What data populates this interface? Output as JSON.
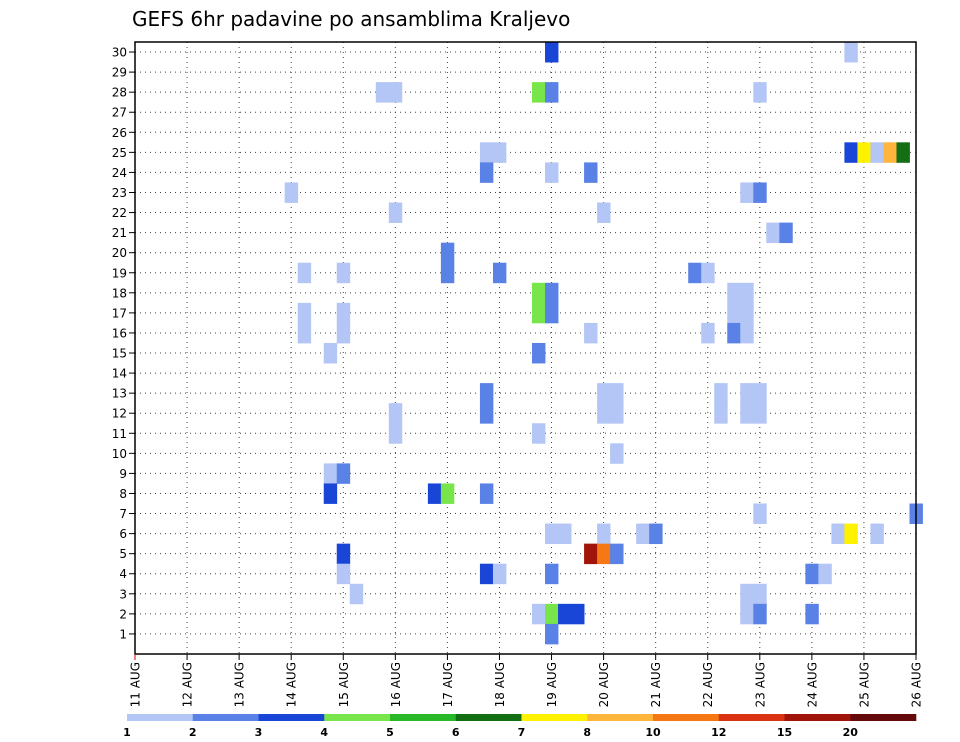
{
  "chart_data": {
    "type": "heatmap",
    "title": "GEFS 6hr padavine po ansamblima Kraljevo",
    "y_categories": [
      "1",
      "2",
      "3",
      "4",
      "5",
      "6",
      "7",
      "8",
      "9",
      "10",
      "11",
      "12",
      "13",
      "14",
      "15",
      "16",
      "17",
      "18",
      "19",
      "20",
      "21",
      "22",
      "23",
      "24",
      "25",
      "26",
      "27",
      "28",
      "29",
      "30"
    ],
    "x_tick_labels": [
      "11 AUG",
      "12 AUG",
      "13 AUG",
      "14 AUG",
      "15 AUG",
      "16 AUG",
      "17 AUG",
      "18 AUG",
      "19 AUG",
      "20 AUG",
      "21 AUG",
      "22 AUG",
      "23 AUG",
      "24 AUG",
      "25 AUG",
      "26 AUG"
    ],
    "x_range_days": [
      11,
      26
    ],
    "y_range": [
      0,
      30.5
    ],
    "grid": true,
    "legend": {
      "placement": "bottom",
      "labels": [
        "1",
        "2",
        "3",
        "4",
        "5",
        "6",
        "7",
        "8",
        "10",
        "12",
        "15",
        "20"
      ],
      "colors": [
        "#b3c6f5",
        "#5a82e6",
        "#1a46d8",
        "#78e64a",
        "#28b828",
        "#146e14",
        "#fff200",
        "#ffb43c",
        "#f57814",
        "#dc3214",
        "#a0140a",
        "#640a0a"
      ]
    },
    "cells": [
      {
        "m": 30,
        "t": 19.0,
        "v": 3
      },
      {
        "m": 30,
        "t": 24.75,
        "v": 1
      },
      {
        "m": 28,
        "t": 15.75,
        "v": 1
      },
      {
        "m": 28,
        "t": 16.0,
        "v": 1
      },
      {
        "m": 28,
        "t": 18.75,
        "v": 4
      },
      {
        "m": 28,
        "t": 19.0,
        "v": 2
      },
      {
        "m": 28,
        "t": 23.0,
        "v": 1
      },
      {
        "m": 25,
        "t": 17.75,
        "v": 1
      },
      {
        "m": 25,
        "t": 18.0,
        "v": 1
      },
      {
        "m": 25,
        "t": 24.75,
        "v": 3
      },
      {
        "m": 25,
        "t": 25.0,
        "v": 7
      },
      {
        "m": 25,
        "t": 25.25,
        "v": 1
      },
      {
        "m": 25,
        "t": 25.5,
        "v": 8
      },
      {
        "m": 25,
        "t": 25.75,
        "v": 6
      },
      {
        "m": 24,
        "t": 17.75,
        "v": 2
      },
      {
        "m": 24,
        "t": 19.0,
        "v": 1
      },
      {
        "m": 24,
        "t": 19.75,
        "v": 2
      },
      {
        "m": 23,
        "t": 14.0,
        "v": 1
      },
      {
        "m": 23,
        "t": 22.75,
        "v": 1
      },
      {
        "m": 23,
        "t": 23.0,
        "v": 2
      },
      {
        "m": 22,
        "t": 16.0,
        "v": 1
      },
      {
        "m": 22,
        "t": 20.0,
        "v": 1
      },
      {
        "m": 21,
        "t": 23.25,
        "v": 1
      },
      {
        "m": 21,
        "t": 23.5,
        "v": 2
      },
      {
        "m": 20,
        "t": 17.0,
        "v": 2
      },
      {
        "m": 19,
        "t": 14.25,
        "v": 1
      },
      {
        "m": 19,
        "t": 15.0,
        "v": 1
      },
      {
        "m": 19,
        "t": 17.0,
        "v": 2
      },
      {
        "m": 19,
        "t": 18.0,
        "v": 2
      },
      {
        "m": 19,
        "t": 21.75,
        "v": 2
      },
      {
        "m": 19,
        "t": 22.0,
        "v": 1
      },
      {
        "m": 18,
        "t": 18.75,
        "v": 4
      },
      {
        "m": 18,
        "t": 19.0,
        "v": 2
      },
      {
        "m": 18,
        "t": 22.5,
        "v": 1
      },
      {
        "m": 18,
        "t": 22.75,
        "v": 1
      },
      {
        "m": 17,
        "t": 14.25,
        "v": 1
      },
      {
        "m": 17,
        "t": 15.0,
        "v": 1
      },
      {
        "m": 17,
        "t": 18.75,
        "v": 4
      },
      {
        "m": 17,
        "t": 19.0,
        "v": 2
      },
      {
        "m": 17,
        "t": 22.5,
        "v": 1
      },
      {
        "m": 17,
        "t": 22.75,
        "v": 1
      },
      {
        "m": 16,
        "t": 14.25,
        "v": 1
      },
      {
        "m": 16,
        "t": 15.0,
        "v": 1
      },
      {
        "m": 16,
        "t": 19.75,
        "v": 1
      },
      {
        "m": 16,
        "t": 22.0,
        "v": 1
      },
      {
        "m": 16,
        "t": 22.5,
        "v": 2
      },
      {
        "m": 16,
        "t": 22.75,
        "v": 1
      },
      {
        "m": 15,
        "t": 14.75,
        "v": 1
      },
      {
        "m": 15,
        "t": 18.75,
        "v": 2
      },
      {
        "m": 13,
        "t": 17.75,
        "v": 2
      },
      {
        "m": 13,
        "t": 20.0,
        "v": 1
      },
      {
        "m": 13,
        "t": 20.25,
        "v": 1
      },
      {
        "m": 13,
        "t": 22.25,
        "v": 1
      },
      {
        "m": 13,
        "t": 22.75,
        "v": 1
      },
      {
        "m": 13,
        "t": 23.0,
        "v": 1
      },
      {
        "m": 12,
        "t": 16.0,
        "v": 1
      },
      {
        "m": 12,
        "t": 17.75,
        "v": 2
      },
      {
        "m": 12,
        "t": 20.0,
        "v": 1
      },
      {
        "m": 12,
        "t": 20.25,
        "v": 1
      },
      {
        "m": 12,
        "t": 22.25,
        "v": 1
      },
      {
        "m": 12,
        "t": 22.75,
        "v": 1
      },
      {
        "m": 12,
        "t": 23.0,
        "v": 1
      },
      {
        "m": 11,
        "t": 16.0,
        "v": 1
      },
      {
        "m": 11,
        "t": 18.75,
        "v": 1
      },
      {
        "m": 10,
        "t": 20.25,
        "v": 1
      },
      {
        "m": 9,
        "t": 14.75,
        "v": 1
      },
      {
        "m": 9,
        "t": 15.0,
        "v": 2
      },
      {
        "m": 8,
        "t": 14.75,
        "v": 3
      },
      {
        "m": 8,
        "t": 16.75,
        "v": 3
      },
      {
        "m": 8,
        "t": 17.0,
        "v": 4
      },
      {
        "m": 8,
        "t": 17.75,
        "v": 2
      },
      {
        "m": 7,
        "t": 23.0,
        "v": 1
      },
      {
        "m": 7,
        "t": 26.0,
        "v": 2
      },
      {
        "m": 6,
        "t": 19.0,
        "v": 1
      },
      {
        "m": 6,
        "t": 19.25,
        "v": 1
      },
      {
        "m": 6,
        "t": 20.0,
        "v": 1
      },
      {
        "m": 6,
        "t": 20.75,
        "v": 1
      },
      {
        "m": 6,
        "t": 21.0,
        "v": 2
      },
      {
        "m": 6,
        "t": 24.5,
        "v": 1
      },
      {
        "m": 6,
        "t": 24.75,
        "v": 7
      },
      {
        "m": 6,
        "t": 25.25,
        "v": 1
      },
      {
        "m": 5,
        "t": 15.0,
        "v": 3
      },
      {
        "m": 5,
        "t": 19.75,
        "v": 11
      },
      {
        "m": 5,
        "t": 20.0,
        "v": 9
      },
      {
        "m": 5,
        "t": 20.25,
        "v": 2
      },
      {
        "m": 4,
        "t": 15.0,
        "v": 1
      },
      {
        "m": 4,
        "t": 17.75,
        "v": 3
      },
      {
        "m": 4,
        "t": 18.0,
        "v": 1
      },
      {
        "m": 4,
        "t": 19.0,
        "v": 2
      },
      {
        "m": 4,
        "t": 24.0,
        "v": 2
      },
      {
        "m": 4,
        "t": 24.25,
        "v": 1
      },
      {
        "m": 3,
        "t": 15.25,
        "v": 1
      },
      {
        "m": 3,
        "t": 22.75,
        "v": 1
      },
      {
        "m": 3,
        "t": 23.0,
        "v": 1
      },
      {
        "m": 2,
        "t": 18.75,
        "v": 1
      },
      {
        "m": 2,
        "t": 19.0,
        "v": 4
      },
      {
        "m": 2,
        "t": 19.25,
        "v": 3
      },
      {
        "m": 2,
        "t": 19.5,
        "v": 3
      },
      {
        "m": 2,
        "t": 22.75,
        "v": 1
      },
      {
        "m": 2,
        "t": 23.0,
        "v": 2
      },
      {
        "m": 2,
        "t": 24.0,
        "v": 2
      },
      {
        "m": 1,
        "t": 19.0,
        "v": 2
      }
    ]
  }
}
